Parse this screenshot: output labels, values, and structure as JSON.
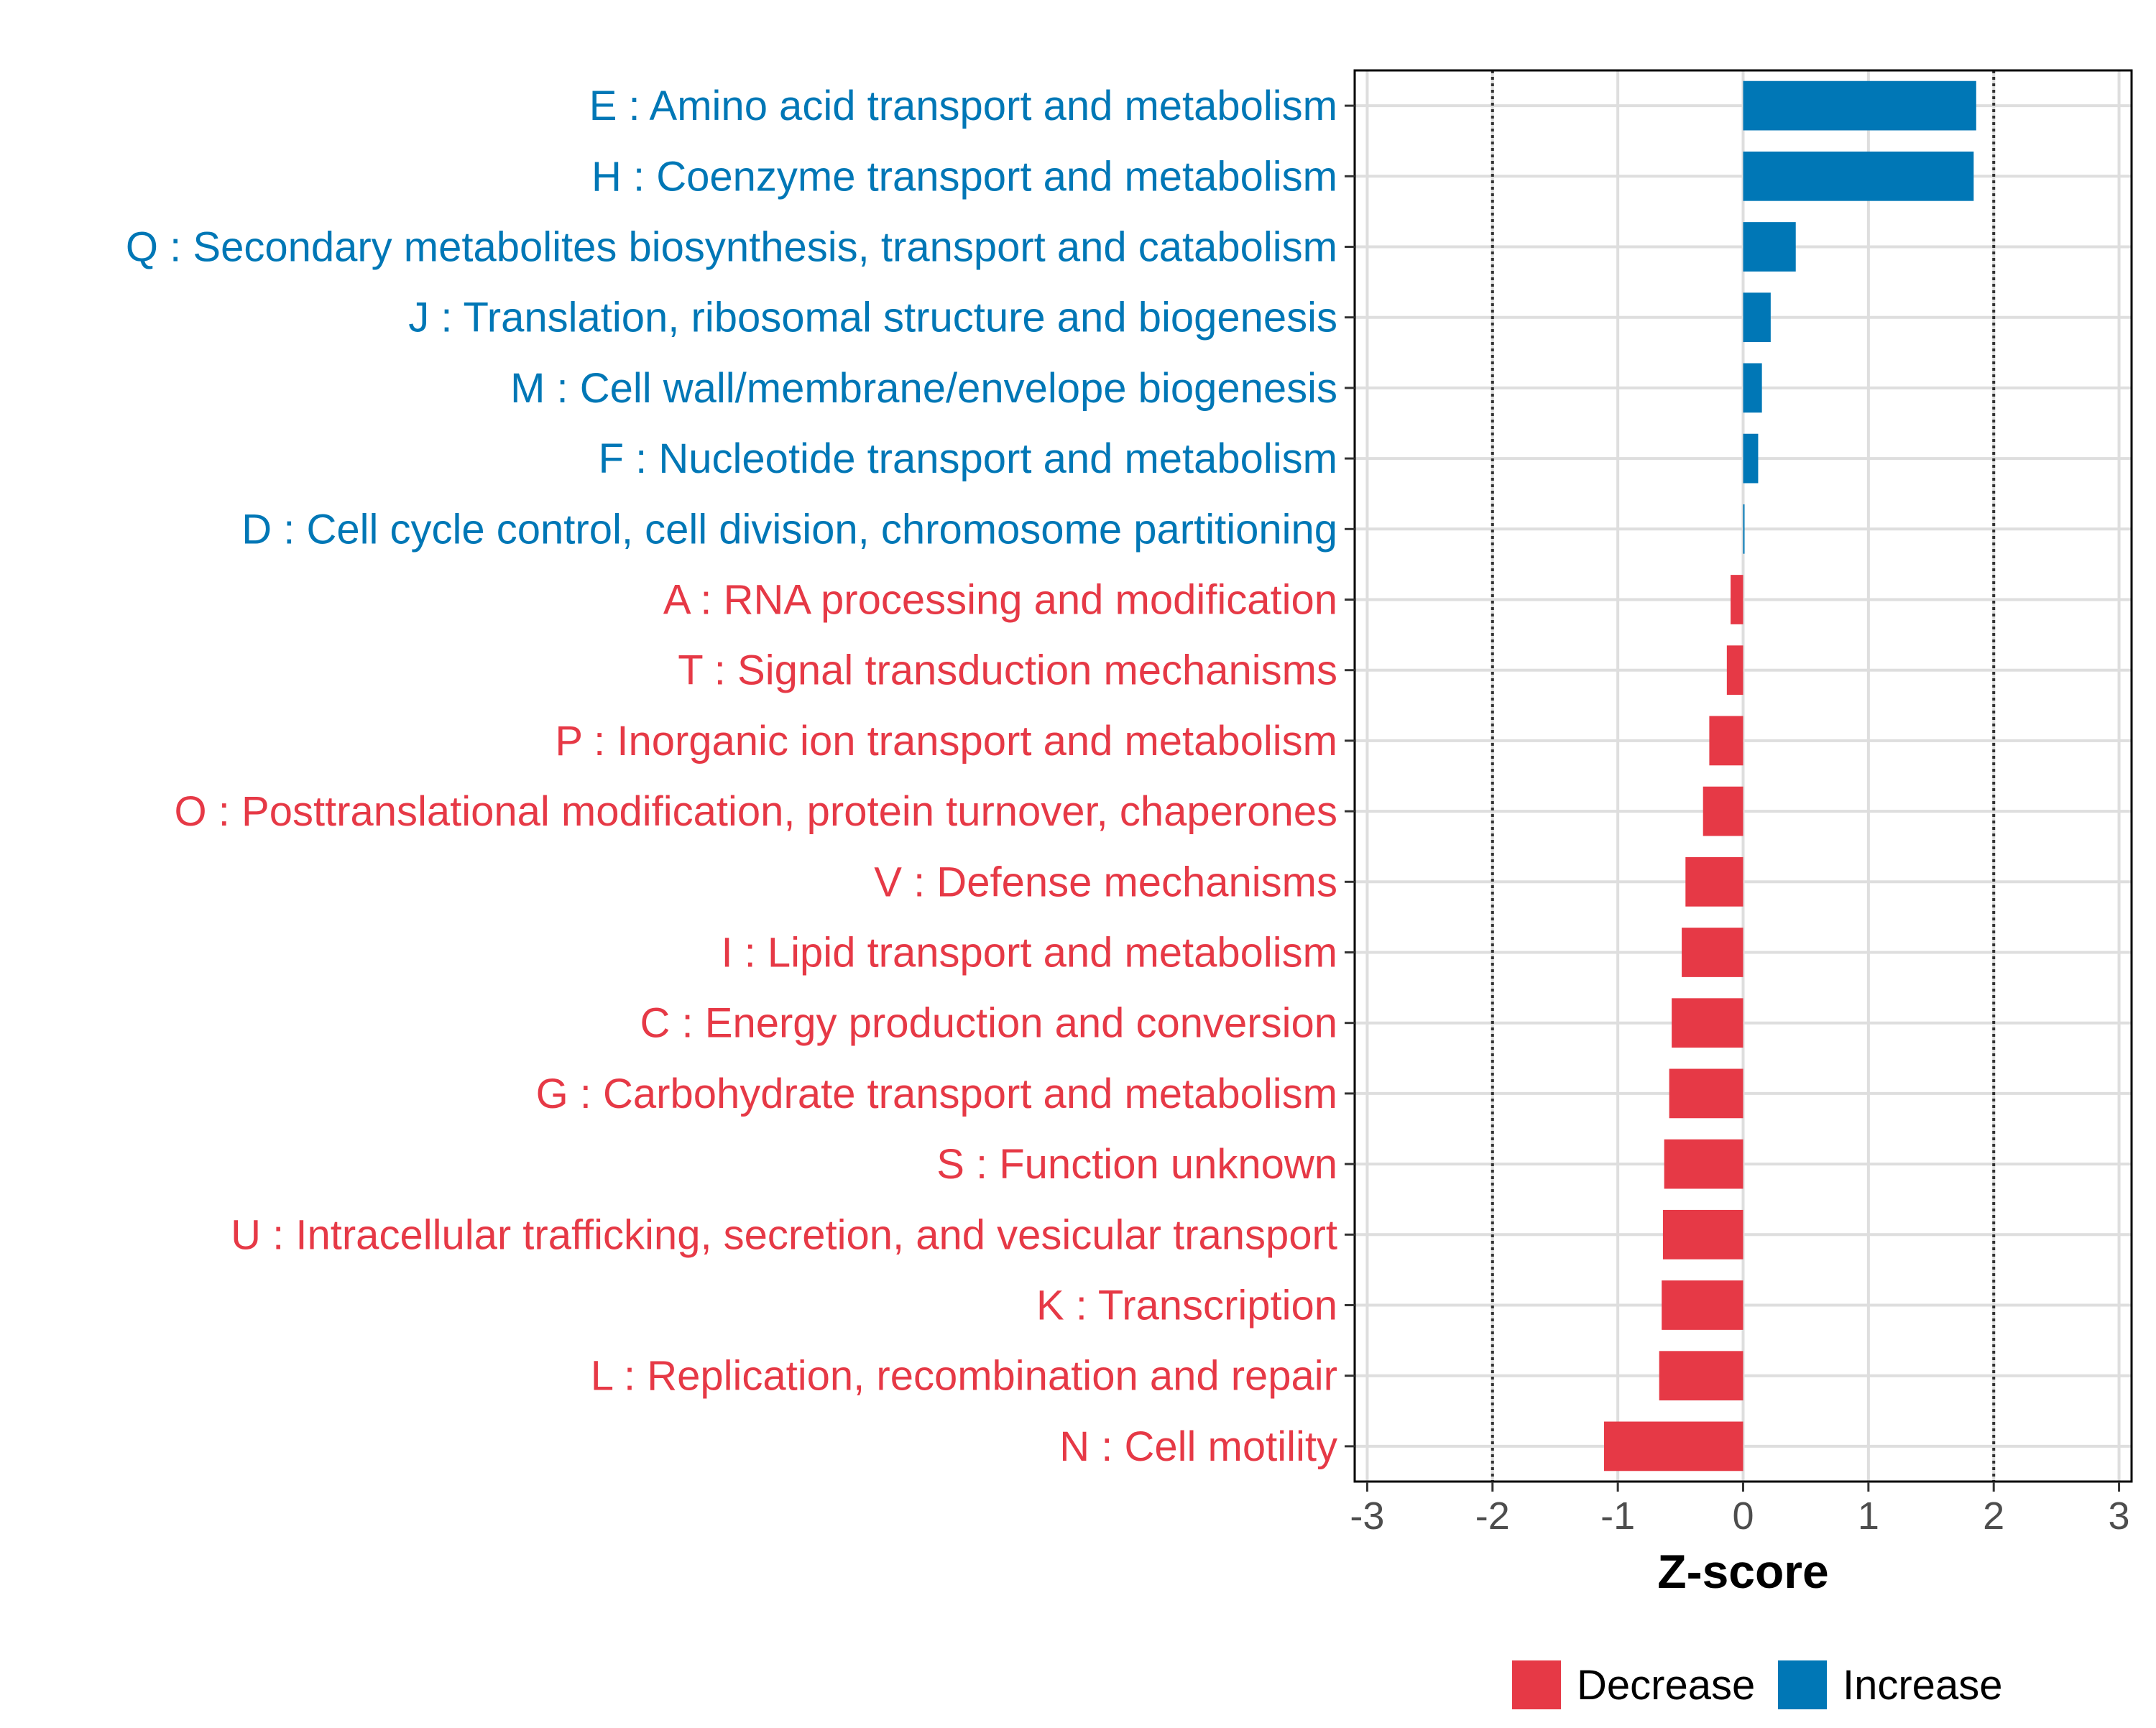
{
  "chart_data": {
    "type": "bar",
    "orientation": "horizontal",
    "xlabel": "Z-score",
    "xlim": [
      -3.1,
      3.1
    ],
    "xticks": [
      -3,
      -2,
      -1,
      0,
      1,
      2,
      3
    ],
    "xtick_labels": [
      "-3",
      "-2",
      "-1",
      "0",
      "1",
      "2",
      "3"
    ],
    "reference_lines": [
      -2,
      2
    ],
    "grid": true,
    "legend_position": "bottom",
    "colors": {
      "Decrease": "#E63946",
      "Increase": "#0077B6"
    },
    "legend": [
      {
        "label": "Decrease",
        "color": "#E63946"
      },
      {
        "label": "Increase",
        "color": "#0077B6"
      }
    ],
    "categories": [
      "E : Amino acid transport and metabolism",
      "H : Coenzyme transport and metabolism",
      "Q : Secondary metabolites biosynthesis, transport and catabolism",
      "J : Translation, ribosomal structure and biogenesis",
      "M : Cell wall/membrane/envelope biogenesis",
      "F : Nucleotide transport and metabolism",
      "D : Cell cycle control, cell division, chromosome partitioning",
      "A : RNA processing and modification",
      "T : Signal transduction mechanisms",
      "P : Inorganic ion transport and metabolism",
      "O : Posttranslational modification, protein turnover, chaperones",
      "V : Defense mechanisms",
      "I : Lipid transport and metabolism",
      "C : Energy production and conversion",
      "G : Carbohydrate transport and metabolism",
      "S : Function unknown",
      "U : Intracellular trafficking, secretion, and vesicular transport",
      "K : Transcription",
      "L : Replication, recombination and repair",
      "N : Cell motility"
    ],
    "values": [
      1.86,
      1.84,
      0.42,
      0.22,
      0.15,
      0.12,
      0.01,
      -0.1,
      -0.13,
      -0.27,
      -0.32,
      -0.46,
      -0.49,
      -0.57,
      -0.59,
      -0.63,
      -0.64,
      -0.65,
      -0.67,
      -1.11
    ],
    "groups": [
      "Increase",
      "Increase",
      "Increase",
      "Increase",
      "Increase",
      "Increase",
      "Increase",
      "Decrease",
      "Decrease",
      "Decrease",
      "Decrease",
      "Decrease",
      "Decrease",
      "Decrease",
      "Decrease",
      "Decrease",
      "Decrease",
      "Decrease",
      "Decrease",
      "Decrease"
    ]
  }
}
